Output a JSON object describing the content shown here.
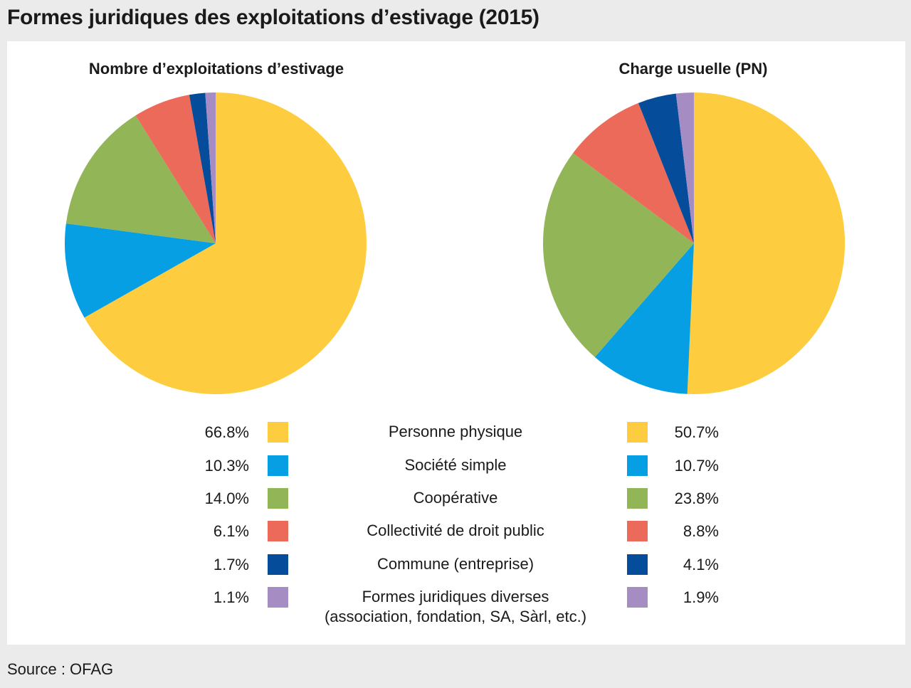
{
  "title": "Formes juridiques des exploitations d’estivage (2015)",
  "source": "Source : OFAG",
  "chart_data": [
    {
      "type": "pie",
      "title": "Nombre d’exploitations d’estivage",
      "categories": [
        "Personne physique",
        "Société simple",
        "Coopérative",
        "Collectivité de droit public",
        "Commune (entreprise)",
        "Formes juridiques diverses\n(association, fondation, SA, Sàrl, etc.)"
      ],
      "values": [
        66.8,
        10.3,
        14.0,
        6.1,
        1.7,
        1.1
      ],
      "labels": [
        "66.8%",
        "10.3%",
        "14.0%",
        "6.1%",
        "1.7%",
        "1.1%"
      ]
    },
    {
      "type": "pie",
      "title": "Charge usuelle (PN)",
      "categories": [
        "Personne physique",
        "Société simple",
        "Coopérative",
        "Collectivité de droit public",
        "Commune (entreprise)",
        "Formes juridiques diverses\n(association, fondation, SA, Sàrl, etc.)"
      ],
      "values": [
        50.7,
        10.7,
        23.8,
        8.8,
        4.1,
        1.9
      ],
      "labels": [
        "50.7%",
        "10.7%",
        "23.8%",
        "8.8%",
        "4.1%",
        "1.9%"
      ]
    }
  ],
  "legend": {
    "items": [
      {
        "label": "Personne physique",
        "label2": "",
        "color": "#fecc3f"
      },
      {
        "label": "Société simple",
        "label2": "",
        "color": "#069fe3"
      },
      {
        "label": "Coopérative",
        "label2": "",
        "color": "#92b558"
      },
      {
        "label": "Collectivité de droit public",
        "label2": "",
        "color": "#ec6a5a"
      },
      {
        "label": "Commune (entreprise)",
        "label2": "",
        "color": "#054c9a"
      },
      {
        "label": "Formes juridiques diverses",
        "label2": "(association, fondation, SA, Sàrl, etc.)",
        "color": "#a58dc4"
      }
    ]
  }
}
